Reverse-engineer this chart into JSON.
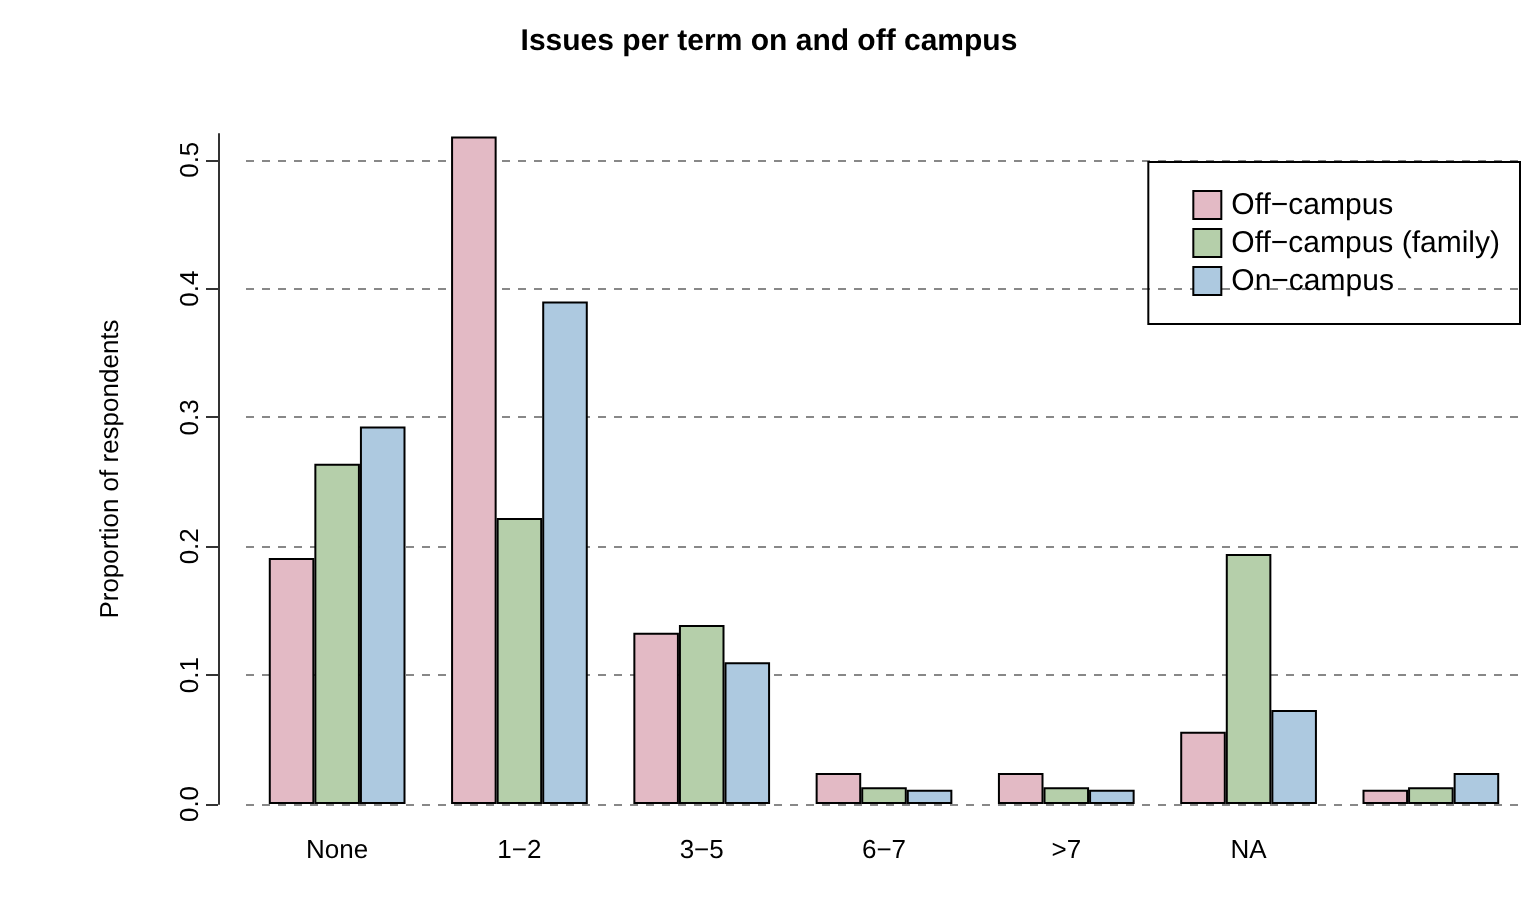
{
  "chart_data": {
    "type": "bar",
    "title": "Issues per term on and off campus",
    "ylabel": "Proportion of respondents",
    "categories": [
      "None",
      "1−2",
      "3−5",
      "6−7",
      ">7",
      "NA",
      null
    ],
    "series": [
      {
        "name": "Off−campus",
        "color": "#e3bac5",
        "values": [
          0.191,
          0.518,
          0.133,
          0.024,
          0.024,
          0.056,
          0.011
        ]
      },
      {
        "name": "Off−campus (family)",
        "color": "#b5cfaa",
        "values": [
          0.264,
          0.222,
          0.139,
          0.013,
          0.013,
          0.194,
          0.013
        ]
      },
      {
        "name": "On−campus",
        "color": "#adc9e0",
        "values": [
          0.293,
          0.39,
          0.11,
          0.011,
          0.011,
          0.073,
          0.024
        ]
      }
    ],
    "ylim": [
      0,
      0.52
    ],
    "yticks": [
      {
        "value": 0,
        "label": "0.0"
      },
      {
        "value": 0.1,
        "label": "0.1"
      },
      {
        "value": 0.2,
        "label": "0.2"
      },
      {
        "value": 0.3,
        "label": "0.3"
      },
      {
        "value": 0.4,
        "label": "0.4"
      },
      {
        "value": 0.5,
        "label": "0.5"
      }
    ],
    "grid": "y",
    "legend": "top right"
  }
}
